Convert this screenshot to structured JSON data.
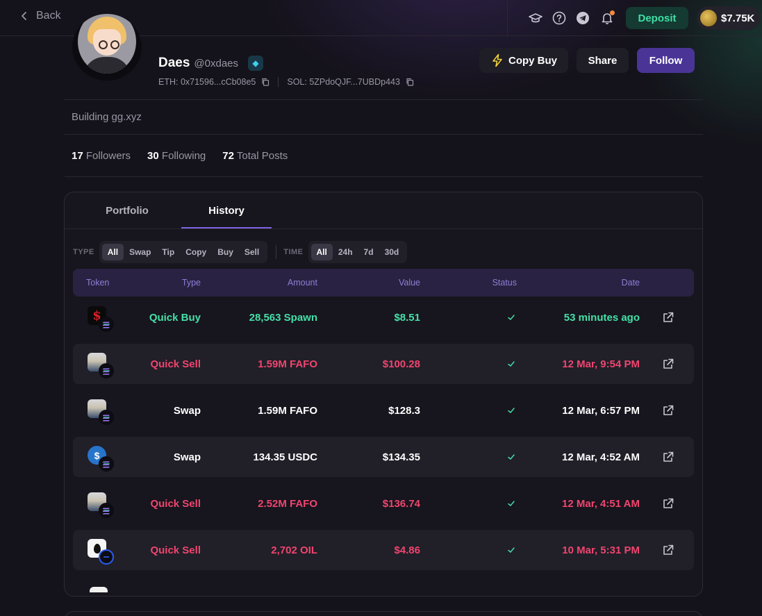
{
  "topbar": {
    "back_label": "Back",
    "icons": [
      "academy-icon",
      "help-icon",
      "telegram-icon",
      "bell-icon"
    ],
    "deposit_label": "Deposit",
    "balance": "$7.75K"
  },
  "profile": {
    "name": "Daes",
    "handle": "@0xdaes",
    "badge": "diamond-icon",
    "eth_address": "ETH: 0x71596...cCb08e5",
    "sol_address": "SOL: 5ZPdoQJF...7UBDp443",
    "bio": "Building gg.xyz",
    "stats": {
      "followers_count": "17",
      "followers_label": "Followers",
      "following_count": "30",
      "following_label": "Following",
      "posts_count": "72",
      "posts_label": "Total Posts"
    },
    "actions": {
      "copy_buy": "Copy Buy",
      "share": "Share",
      "follow": "Follow"
    }
  },
  "tabs": [
    {
      "label": "Portfolio",
      "active": false
    },
    {
      "label": "History",
      "active": true
    }
  ],
  "filters": {
    "type_label": "TYPE",
    "type_options": [
      "All",
      "Swap",
      "Tip",
      "Copy",
      "Buy",
      "Sell"
    ],
    "type_selected": "All",
    "time_label": "TIME",
    "time_options": [
      "All",
      "24h",
      "7d",
      "30d"
    ],
    "time_selected": "All"
  },
  "table": {
    "columns": [
      "Token",
      "Type",
      "Amount",
      "Value",
      "Status",
      "Date"
    ],
    "rows": [
      {
        "token": "Spawn",
        "type": "Quick Buy",
        "amount": "28,563 Spawn",
        "value": "$8.51",
        "date": "53 minutes ago",
        "tone": "green"
      },
      {
        "token": "FAFO",
        "type": "Quick Sell",
        "amount": "1.59M FAFO",
        "value": "$100.28",
        "date": "12 Mar, 9:54 PM",
        "tone": "red"
      },
      {
        "token": "FAFO",
        "type": "Swap",
        "amount": "1.59M FAFO",
        "value": "$128.3",
        "date": "12 Mar, 6:57 PM",
        "tone": "white"
      },
      {
        "token": "USDC",
        "type": "Swap",
        "amount": "134.35 USDC",
        "value": "$134.35",
        "date": "12 Mar, 4:52 AM",
        "tone": "white"
      },
      {
        "token": "FAFO",
        "type": "Quick Sell",
        "amount": "2.52M FAFO",
        "value": "$136.74",
        "date": "12 Mar, 4:51 AM",
        "tone": "red"
      },
      {
        "token": "OIL",
        "type": "Quick Sell",
        "amount": "2,702 OIL",
        "value": "$4.86",
        "date": "10 Mar, 5:31 PM",
        "tone": "red"
      }
    ]
  },
  "colors": {
    "accent": "#7b63e0",
    "follow_bg": "#4a3597",
    "buy_green": "#45e0a8",
    "sell_red": "#f0456f",
    "deposit_green": "#3ee0a6"
  }
}
